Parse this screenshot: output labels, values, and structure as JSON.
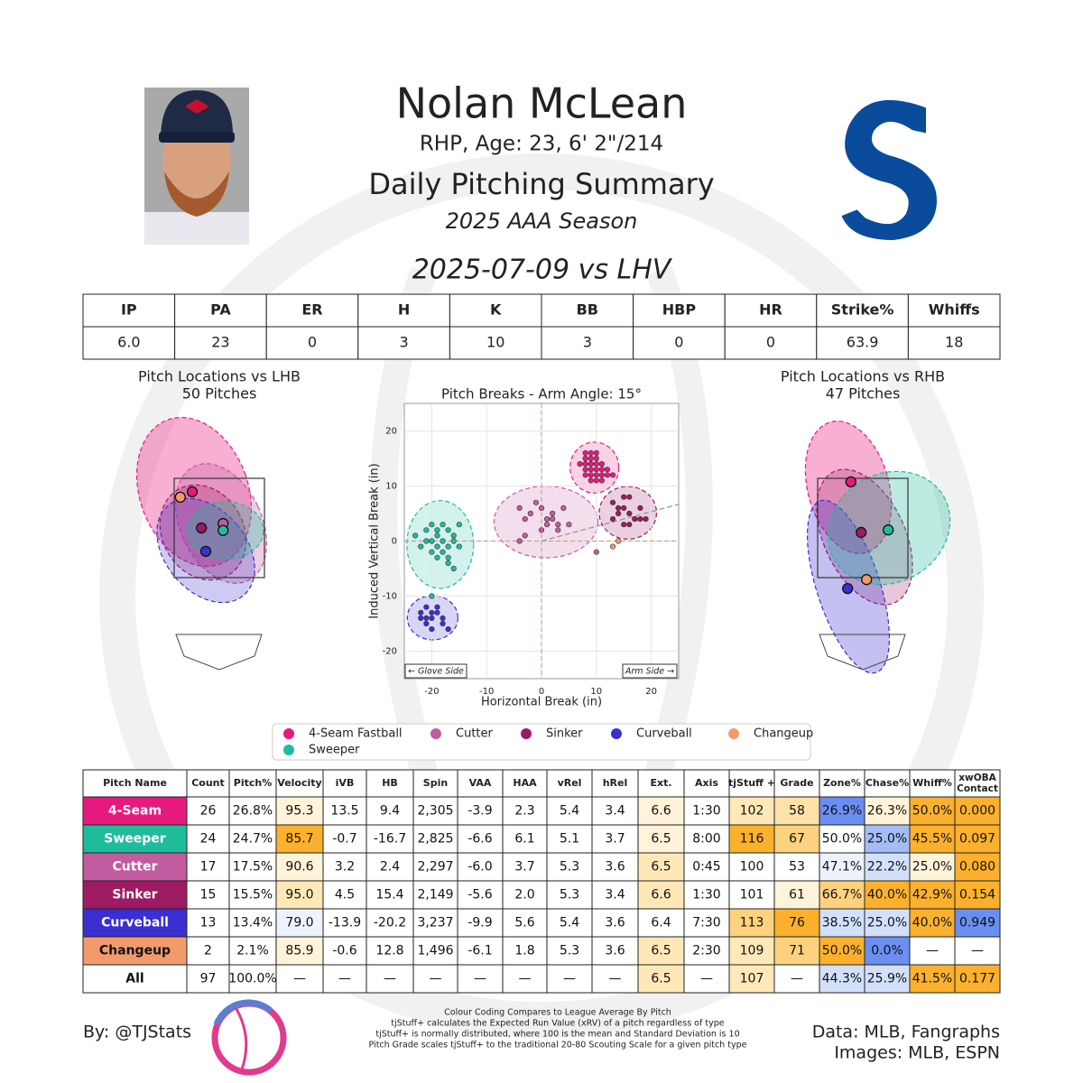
{
  "header": {
    "name": "Nolan McLean",
    "info": "RHP, Age: 23, 6' 2\"/214",
    "title": "Daily Pitching Summary",
    "season": "2025 AAA Season",
    "game": "2025-07-09 vs LHV"
  },
  "stats_table": {
    "headers": [
      "IP",
      "PA",
      "ER",
      "H",
      "K",
      "BB",
      "HBP",
      "HR",
      "Strike%",
      "Whiffs"
    ],
    "values": [
      "6.0",
      "23",
      "0",
      "3",
      "10",
      "3",
      "0",
      "0",
      "63.9",
      "18"
    ]
  },
  "chart_data": [
    {
      "type": "scatter",
      "title": "Pitch Breaks - Arm Angle: 15°",
      "x_label": "Horizontal Break (in)",
      "y_label": "Induced Vertical Break (in)",
      "annotations": [
        "← Glove Side",
        "Arm Side →"
      ],
      "xlim": [
        -25,
        25
      ],
      "ylim": [
        -25,
        25
      ],
      "xticks": [
        -20,
        -10,
        0,
        10,
        20
      ],
      "yticks": [
        -20,
        -10,
        0,
        10,
        20
      ],
      "grid": true,
      "series": [
        {
          "name": "4-Seam Fastball",
          "color": "#e8197d",
          "x": [
            8,
            9,
            10,
            8,
            9,
            10,
            11,
            8,
            9,
            10,
            11,
            12,
            9,
            8,
            10,
            11,
            7,
            9,
            10,
            12,
            8,
            9,
            11,
            10,
            9,
            13
          ],
          "y": [
            16,
            15,
            15,
            14,
            14,
            14,
            14,
            13,
            13,
            13,
            13,
            13,
            12,
            12,
            12,
            12,
            14,
            16,
            16,
            12,
            15,
            11,
            11,
            11,
            14,
            12
          ]
        },
        {
          "name": "Cutter",
          "color": "#c35ba0",
          "x": [
            -4,
            -3,
            -2,
            -1,
            0,
            1,
            2,
            3,
            4,
            -3,
            0,
            2,
            5,
            -4,
            1,
            3,
            10
          ],
          "y": [
            6,
            4,
            5,
            7,
            6,
            4,
            5,
            3,
            6,
            1,
            2,
            4,
            3,
            0,
            3,
            2,
            -2
          ]
        },
        {
          "name": "Sinker",
          "color": "#9c1b62",
          "x": [
            13,
            14,
            15,
            16,
            17,
            18,
            19,
            14,
            15,
            16,
            17,
            15,
            13,
            16,
            18
          ],
          "y": [
            7,
            6,
            8,
            5,
            4,
            4,
            4,
            5,
            3,
            3,
            4,
            6,
            4,
            8,
            6
          ]
        },
        {
          "name": "Curveball",
          "color": "#3a2fd0",
          "x": [
            -22,
            -21,
            -20,
            -19,
            -18,
            -21,
            -20,
            -19,
            -22,
            -20,
            -18,
            -21,
            -17
          ],
          "y": [
            -13,
            -14,
            -13,
            -12,
            -14,
            -15,
            -14,
            -13,
            -14,
            -16,
            -15,
            -12,
            -16
          ]
        },
        {
          "name": "Changeup",
          "color": "#f39a6c",
          "x": [
            13,
            14
          ],
          "y": [
            -1,
            0
          ]
        },
        {
          "name": "Sweeper",
          "color": "#1fbc9c",
          "x": [
            -23,
            -21,
            -20,
            -19,
            -18,
            -17,
            -16,
            -15,
            -21,
            -20,
            -19,
            -18,
            -17,
            -16,
            -15,
            -20,
            -19,
            -18,
            -17,
            -16,
            -22,
            -19,
            -17,
            -20
          ],
          "y": [
            1,
            2,
            3,
            2,
            3,
            2,
            1,
            3,
            0,
            0,
            -1,
            0,
            -1,
            0,
            -1,
            -2,
            -3,
            -2,
            -4,
            -5,
            -1,
            1,
            -3,
            -10
          ]
        }
      ]
    },
    {
      "type": "location",
      "title": "Pitch Locations vs LHB",
      "subtitle": "50 Pitches",
      "series": [
        {
          "color": "#e8197d",
          "x": [
            -0.5
          ],
          "y": [
            3.23
          ]
        },
        {
          "color": "#c35ba0",
          "x": [
            0.07
          ],
          "y": [
            2.59
          ]
        },
        {
          "color": "#9c1b62",
          "x": [
            -0.33
          ],
          "y": [
            2.5
          ]
        },
        {
          "color": "#3a2fd0",
          "x": [
            -0.25
          ],
          "y": [
            2.03
          ]
        },
        {
          "color": "#f39a6c",
          "x": [
            -0.72
          ],
          "y": [
            3.12
          ]
        },
        {
          "color": "#1fbc9c",
          "x": [
            0.07
          ],
          "y": [
            2.45
          ]
        }
      ]
    },
    {
      "type": "location",
      "title": "Pitch Locations vs RHB",
      "subtitle": "47 Pitches",
      "series": [
        {
          "color": "#e8197d",
          "x": [
            -0.22
          ],
          "y": [
            3.43
          ]
        },
        {
          "color": "#9c1b62",
          "x": [
            -0.03
          ],
          "y": [
            2.41
          ]
        },
        {
          "color": "#3a2fd0",
          "x": [
            -0.28
          ],
          "y": [
            1.28
          ]
        },
        {
          "color": "#f39a6c",
          "x": [
            0.07
          ],
          "y": [
            1.46
          ]
        },
        {
          "color": "#1fbc9c",
          "x": [
            0.47
          ],
          "y": [
            2.46
          ]
        }
      ]
    }
  ],
  "pitch_table": {
    "headers": [
      "Pitch Name",
      "Count",
      "Pitch%",
      "Velocity",
      "iVB",
      "HB",
      "Spin",
      "VAA",
      "HAA",
      "vRel",
      "hRel",
      "Ext.",
      "Axis",
      "tjStuff +",
      "Grade",
      "Zone%",
      "Chase%",
      "Whiff%",
      [
        "xwOBA",
        "Contact"
      ]
    ],
    "rows": [
      [
        "4-Seam",
        "26",
        "26.8%",
        "95.3",
        "13.5",
        "9.4",
        "2,305",
        "-3.9",
        "2.3",
        "5.4",
        "3.4",
        "6.6",
        "1:30",
        "102",
        "58",
        "26.9%",
        "26.3%",
        "50.0%",
        "0.000"
      ],
      [
        "Sweeper",
        "24",
        "24.7%",
        "85.7",
        "-0.7",
        "-16.7",
        "2,825",
        "-6.6",
        "6.1",
        "5.1",
        "3.7",
        "6.5",
        "8:00",
        "116",
        "67",
        "50.0%",
        "25.0%",
        "45.5%",
        "0.097"
      ],
      [
        "Cutter",
        "17",
        "17.5%",
        "90.6",
        "3.2",
        "2.4",
        "2,297",
        "-6.0",
        "3.7",
        "5.3",
        "3.6",
        "6.5",
        "0:45",
        "100",
        "53",
        "47.1%",
        "22.2%",
        "25.0%",
        "0.080"
      ],
      [
        "Sinker",
        "15",
        "15.5%",
        "95.0",
        "4.5",
        "15.4",
        "2,149",
        "-5.6",
        "2.0",
        "5.3",
        "3.4",
        "6.6",
        "1:30",
        "101",
        "61",
        "66.7%",
        "40.0%",
        "42.9%",
        "0.154"
      ],
      [
        "Curveball",
        "13",
        "13.4%",
        "79.0",
        "-13.9",
        "-20.2",
        "3,237",
        "-9.9",
        "5.6",
        "5.4",
        "3.6",
        "6.4",
        "7:30",
        "113",
        "76",
        "38.5%",
        "25.0%",
        "40.0%",
        "0.949"
      ],
      [
        "Changeup",
        "2",
        "2.1%",
        "85.9",
        "-0.6",
        "12.8",
        "1,496",
        "-6.1",
        "1.8",
        "5.3",
        "3.6",
        "6.5",
        "2:30",
        "109",
        "71",
        "50.0%",
        "0.0%",
        "—",
        "—"
      ],
      [
        "All",
        "97",
        "100.0%",
        "—",
        "—",
        "—",
        "—",
        "—",
        "—",
        "—",
        "—",
        "6.5",
        "—",
        "107",
        "—",
        "44.3%",
        "25.9%",
        "41.5%",
        "0.177"
      ]
    ],
    "cell_colors": [
      [
        "#e8197d",
        "#ffffff",
        "#ffffff",
        "#fff3d9",
        "#ffffff",
        "#ffffff",
        "#ffffff",
        "#ffffff",
        "#ffffff",
        "#ffffff",
        "#ffffff",
        "#fff3d9",
        "#ffffff",
        "#fee8b8",
        "#fee2a8",
        "#6b8ff0",
        "#fff3d9",
        "#fbb12e",
        "#fbb12e"
      ],
      [
        "#1fbc9c",
        "#ffffff",
        "#ffffff",
        "#fbb12e",
        "#ffffff",
        "#ffffff",
        "#ffffff",
        "#ffffff",
        "#ffffff",
        "#ffffff",
        "#ffffff",
        "#fff3d9",
        "#ffffff",
        "#fbb12e",
        "#fdd27f",
        "#ffffff",
        "#a3bdf6",
        "#fbb12e",
        "#fbb12e"
      ],
      [
        "#c35ba0",
        "#ffffff",
        "#ffffff",
        "#fff3d9",
        "#ffffff",
        "#ffffff",
        "#ffffff",
        "#ffffff",
        "#ffffff",
        "#ffffff",
        "#ffffff",
        "#fee8b8",
        "#ffffff",
        "#ffffff",
        "#ffffff",
        "#edf2fd",
        "#d3e0fa",
        "#fff3d9",
        "#fbb12e"
      ],
      [
        "#9c1b62",
        "#ffffff",
        "#ffffff",
        "#fee8b8",
        "#ffffff",
        "#ffffff",
        "#ffffff",
        "#ffffff",
        "#ffffff",
        "#ffffff",
        "#ffffff",
        "#fee8b8",
        "#ffffff",
        "#ffffff",
        "#fff3d9",
        "#fdd27f",
        "#fbb12e",
        "#fbb12e",
        "#fbb12e"
      ],
      [
        "#3a2fd0",
        "#ffffff",
        "#ffffff",
        "#edf2fd",
        "#ffffff",
        "#ffffff",
        "#ffffff",
        "#ffffff",
        "#ffffff",
        "#ffffff",
        "#ffffff",
        "#ffffff",
        "#ffffff",
        "#fdd27f",
        "#fbb12e",
        "#d3e0fa",
        "#d3e0fa",
        "#fbb12e",
        "#6b8ff0"
      ],
      [
        "#f39a6c",
        "#ffffff",
        "#ffffff",
        "#fff3d9",
        "#ffffff",
        "#ffffff",
        "#ffffff",
        "#ffffff",
        "#ffffff",
        "#ffffff",
        "#ffffff",
        "#fee8b8",
        "#ffffff",
        "#fee8b8",
        "#fdd27f",
        "#fbb12e",
        "#6b8ff0",
        "#ffffff",
        "#ffffff"
      ],
      [
        "#ffffff",
        "#ffffff",
        "#ffffff",
        "#ffffff",
        "#ffffff",
        "#ffffff",
        "#ffffff",
        "#ffffff",
        "#ffffff",
        "#ffffff",
        "#ffffff",
        "#fee8b8",
        "#ffffff",
        "#fee8b8",
        "#ffffff",
        "#d3e0fa",
        "#d3e0fa",
        "#fbb12e",
        "#fbb12e"
      ]
    ]
  },
  "footer": {
    "byline": "By: @TJStats",
    "notes": [
      "Colour Coding Compares to League Average By Pitch",
      "tjStuff+ calculates the Expected Run Value (xRV) of a pitch regardless of type",
      "tjStuff+ is normally distributed, where 100 is the mean and Standard Deviation is 10",
      "Pitch Grade scales tjStuff+ to the traditional 20-80 Scouting Scale for a given pitch type"
    ],
    "sources": [
      "Data: MLB, Fangraphs",
      "Images: MLB, ESPN"
    ]
  }
}
